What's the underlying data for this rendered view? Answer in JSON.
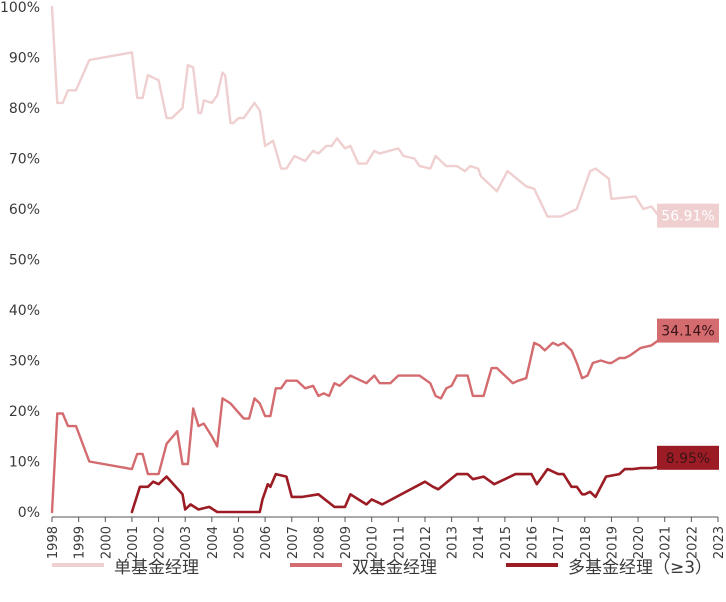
{
  "chart_data": {
    "type": "line",
    "ylim": [
      0,
      100
    ],
    "yticks": [
      "0%",
      "10%",
      "20%",
      "30%",
      "40%",
      "50%",
      "60%",
      "70%",
      "80%",
      "90%",
      "100%"
    ],
    "xlim": [
      1998,
      2023
    ],
    "xticks": [
      "1998",
      "1999",
      "2000",
      "2001",
      "2002",
      "2003",
      "2004",
      "2005",
      "2006",
      "2007",
      "2008",
      "2009",
      "2010",
      "2011",
      "2012",
      "2013",
      "2014",
      "2015",
      "2016",
      "2017",
      "2018",
      "2019",
      "2020",
      "2021",
      "2022",
      "2023"
    ],
    "legend_position": "bottom",
    "series": [
      {
        "name": "单基金经理",
        "color": "#efcfd0",
        "end_label": "56.91%",
        "points": [
          [
            1998.0,
            100
          ],
          [
            1998.2,
            81
          ],
          [
            1998.4,
            81
          ],
          [
            1998.6,
            83.5
          ],
          [
            1998.9,
            83.5
          ],
          [
            1999.4,
            89.5
          ],
          [
            2001.0,
            91
          ],
          [
            2001.2,
            82
          ],
          [
            2001.4,
            82
          ],
          [
            2001.6,
            86.5
          ],
          [
            2002.0,
            85.5
          ],
          [
            2002.3,
            78
          ],
          [
            2002.5,
            78
          ],
          [
            2002.9,
            80
          ],
          [
            2003.1,
            88.5
          ],
          [
            2003.3,
            88
          ],
          [
            2003.5,
            79
          ],
          [
            2003.6,
            79
          ],
          [
            2003.7,
            81.5
          ],
          [
            2004.0,
            81
          ],
          [
            2004.2,
            82.5
          ],
          [
            2004.4,
            87
          ],
          [
            2004.5,
            86.5
          ],
          [
            2004.7,
            77
          ],
          [
            2004.8,
            77
          ],
          [
            2005.0,
            78
          ],
          [
            2005.2,
            78
          ],
          [
            2005.6,
            81
          ],
          [
            2005.8,
            79.5
          ],
          [
            2006.0,
            72.5
          ],
          [
            2006.3,
            73.5
          ],
          [
            2006.6,
            68
          ],
          [
            2006.8,
            68
          ],
          [
            2007.1,
            70.5
          ],
          [
            2007.5,
            69.5
          ],
          [
            2007.8,
            71.5
          ],
          [
            2008.0,
            71
          ],
          [
            2008.3,
            72.5
          ],
          [
            2008.5,
            72.5
          ],
          [
            2008.7,
            74
          ],
          [
            2009.0,
            72
          ],
          [
            2009.2,
            72.5
          ],
          [
            2009.5,
            69
          ],
          [
            2009.8,
            69
          ],
          [
            2010.1,
            71.5
          ],
          [
            2010.3,
            71
          ],
          [
            2011.0,
            72
          ],
          [
            2011.2,
            70.5
          ],
          [
            2011.6,
            70
          ],
          [
            2011.8,
            68.5
          ],
          [
            2012.2,
            68
          ],
          [
            2012.4,
            70.5
          ],
          [
            2012.8,
            68.5
          ],
          [
            2013.2,
            68.5
          ],
          [
            2013.5,
            67.5
          ],
          [
            2013.7,
            68.5
          ],
          [
            2014.0,
            68
          ],
          [
            2014.1,
            66.5
          ],
          [
            2014.7,
            63.5
          ],
          [
            2015.1,
            67.5
          ],
          [
            2015.8,
            64.5
          ],
          [
            2016.1,
            64
          ],
          [
            2016.6,
            58.5
          ],
          [
            2017.1,
            58.5
          ],
          [
            2017.7,
            60
          ],
          [
            2018.2,
            67.5
          ],
          [
            2018.4,
            68
          ],
          [
            2018.9,
            66
          ],
          [
            2019.0,
            62
          ],
          [
            2019.9,
            62.5
          ],
          [
            2020.2,
            60
          ],
          [
            2020.5,
            60.5
          ],
          [
            2020.8,
            58.5
          ],
          [
            2021.0,
            58.5
          ],
          [
            2021.05,
            56.91
          ]
        ]
      },
      {
        "name": "双基金经理",
        "color": "#d36b6f",
        "end_label": "34.14%",
        "points": [
          [
            1998.0,
            0
          ],
          [
            1998.2,
            19.5
          ],
          [
            1998.4,
            19.5
          ],
          [
            1998.6,
            17
          ],
          [
            1998.9,
            17
          ],
          [
            1999.4,
            10
          ],
          [
            2001.0,
            8.5
          ],
          [
            2001.2,
            11.5
          ],
          [
            2001.4,
            11.5
          ],
          [
            2001.6,
            7.5
          ],
          [
            2002.0,
            7.5
          ],
          [
            2002.3,
            13.5
          ],
          [
            2002.7,
            16
          ],
          [
            2002.9,
            9.5
          ],
          [
            2003.1,
            9.5
          ],
          [
            2003.3,
            20.5
          ],
          [
            2003.5,
            17
          ],
          [
            2003.7,
            17.5
          ],
          [
            2004.0,
            15
          ],
          [
            2004.2,
            13
          ],
          [
            2004.4,
            22.5
          ],
          [
            2004.7,
            21.5
          ],
          [
            2005.2,
            18.5
          ],
          [
            2005.4,
            18.5
          ],
          [
            2005.6,
            22.5
          ],
          [
            2005.8,
            21.5
          ],
          [
            2006.0,
            19
          ],
          [
            2006.2,
            19
          ],
          [
            2006.4,
            24.5
          ],
          [
            2006.6,
            24.5
          ],
          [
            2006.8,
            26
          ],
          [
            2007.2,
            26
          ],
          [
            2007.5,
            24.5
          ],
          [
            2007.8,
            25
          ],
          [
            2008.0,
            23
          ],
          [
            2008.2,
            23.5
          ],
          [
            2008.4,
            23
          ],
          [
            2008.6,
            25.5
          ],
          [
            2008.8,
            25
          ],
          [
            2009.2,
            27
          ],
          [
            2009.8,
            25.5
          ],
          [
            2010.1,
            27
          ],
          [
            2010.3,
            25.5
          ],
          [
            2010.7,
            25.5
          ],
          [
            2011.0,
            27
          ],
          [
            2011.8,
            27
          ],
          [
            2012.2,
            25.5
          ],
          [
            2012.4,
            23
          ],
          [
            2012.6,
            22.5
          ],
          [
            2012.8,
            24.5
          ],
          [
            2013.0,
            25
          ],
          [
            2013.2,
            27
          ],
          [
            2013.6,
            27
          ],
          [
            2013.8,
            23
          ],
          [
            2014.2,
            23
          ],
          [
            2014.5,
            28.5
          ],
          [
            2014.7,
            28.5
          ],
          [
            2015.3,
            25.5
          ],
          [
            2015.5,
            26
          ],
          [
            2015.8,
            26.5
          ],
          [
            2016.1,
            33.5
          ],
          [
            2016.3,
            33
          ],
          [
            2016.5,
            32
          ],
          [
            2016.8,
            33.5
          ],
          [
            2017.0,
            33
          ],
          [
            2017.2,
            33.5
          ],
          [
            2017.5,
            32
          ],
          [
            2017.7,
            29.5
          ],
          [
            2017.9,
            26.5
          ],
          [
            2018.1,
            27
          ],
          [
            2018.3,
            29.5
          ],
          [
            2018.6,
            30
          ],
          [
            2018.9,
            29.5
          ],
          [
            2019.0,
            29.5
          ],
          [
            2019.3,
            30.5
          ],
          [
            2019.5,
            30.5
          ],
          [
            2019.7,
            31
          ],
          [
            2020.1,
            32.5
          ],
          [
            2020.5,
            33
          ],
          [
            2020.8,
            34.14
          ]
        ]
      },
      {
        "name": "多基金经理（≥3）",
        "color": "#9b1c24",
        "end_label": "8.95%",
        "points": [
          [
            2001.0,
            0
          ],
          [
            2001.3,
            5
          ],
          [
            2001.6,
            5
          ],
          [
            2001.8,
            6
          ],
          [
            2002.0,
            5.5
          ],
          [
            2002.3,
            7
          ],
          [
            2002.9,
            3.5
          ],
          [
            2003.0,
            0.5
          ],
          [
            2003.2,
            1.5
          ],
          [
            2003.5,
            0.5
          ],
          [
            2003.9,
            1
          ],
          [
            2004.2,
            0
          ],
          [
            2004.5,
            0
          ],
          [
            2005.0,
            0
          ],
          [
            2005.5,
            0
          ],
          [
            2005.8,
            0
          ],
          [
            2005.9,
            2.5
          ],
          [
            2006.1,
            5.5
          ],
          [
            2006.2,
            5
          ],
          [
            2006.4,
            7.5
          ],
          [
            2006.8,
            7
          ],
          [
            2007.0,
            3
          ],
          [
            2007.4,
            3
          ],
          [
            2008.0,
            3.5
          ],
          [
            2008.6,
            1
          ],
          [
            2009.0,
            1
          ],
          [
            2009.2,
            3.5
          ],
          [
            2009.5,
            2.5
          ],
          [
            2009.8,
            1.5
          ],
          [
            2010.0,
            2.5
          ],
          [
            2010.4,
            1.5
          ],
          [
            2012.0,
            6
          ],
          [
            2012.3,
            5
          ],
          [
            2012.5,
            4.5
          ],
          [
            2013.2,
            7.5
          ],
          [
            2013.6,
            7.5
          ],
          [
            2013.8,
            6.5
          ],
          [
            2014.2,
            7
          ],
          [
            2014.6,
            5.5
          ],
          [
            2015.0,
            6.5
          ],
          [
            2015.4,
            7.5
          ],
          [
            2016.0,
            7.5
          ],
          [
            2016.2,
            5.5
          ],
          [
            2016.6,
            8.5
          ],
          [
            2016.8,
            8
          ],
          [
            2017.0,
            7.5
          ],
          [
            2017.2,
            7.5
          ],
          [
            2017.5,
            5
          ],
          [
            2017.7,
            5
          ],
          [
            2017.9,
            3.5
          ],
          [
            2018.0,
            3.5
          ],
          [
            2018.2,
            4
          ],
          [
            2018.4,
            3
          ],
          [
            2018.8,
            7
          ],
          [
            2019.3,
            7.5
          ],
          [
            2019.5,
            8.5
          ],
          [
            2019.8,
            8.5
          ],
          [
            2020.1,
            8.7
          ],
          [
            2020.5,
            8.7
          ],
          [
            2020.8,
            8.95
          ]
        ]
      }
    ]
  }
}
